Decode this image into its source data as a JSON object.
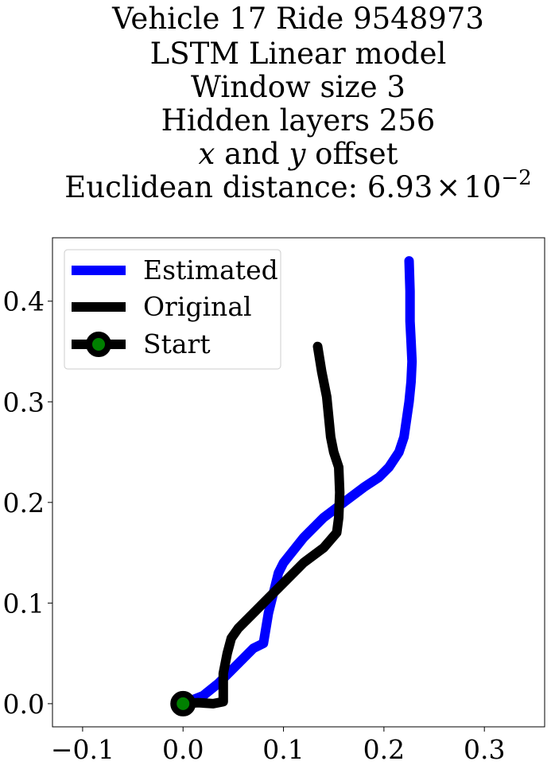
{
  "title_lines": [
    "Vehicle 17 Ride 9548973",
    "LSTM Linear model",
    "Window size 3",
    "Hidden layers 256"
  ],
  "title_offset_line": {
    "x": "x",
    "and": " and ",
    "y": "y",
    "rest": " offset"
  },
  "title_distance_line": {
    "prefix": "Euclidean distance: ",
    "mantissa": "6.93",
    "times": "×",
    "base": "10",
    "exponent": "−2"
  },
  "chart_data": {
    "type": "line",
    "xlim": [
      -0.13,
      0.36
    ],
    "ylim": [
      -0.023,
      0.463
    ],
    "x_ticks": [
      {
        "value": -0.1,
        "label": "−0.1"
      },
      {
        "value": 0.0,
        "label": "0.0"
      },
      {
        "value": 0.1,
        "label": "0.1"
      },
      {
        "value": 0.2,
        "label": "0.2"
      },
      {
        "value": 0.3,
        "label": "0.3"
      }
    ],
    "y_ticks": [
      {
        "value": 0.0,
        "label": "0.0"
      },
      {
        "value": 0.1,
        "label": "0.1"
      },
      {
        "value": 0.2,
        "label": "0.2"
      },
      {
        "value": 0.3,
        "label": "0.3"
      },
      {
        "value": 0.4,
        "label": "0.4"
      }
    ],
    "grid": false,
    "legend_position": "top-left",
    "series": [
      {
        "name": "Estimated",
        "color": "#0000ff",
        "x": [
          0.0,
          0.02,
          0.035,
          0.05,
          0.06,
          0.07,
          0.08,
          0.085,
          0.09,
          0.095,
          0.1,
          0.12,
          0.14,
          0.16,
          0.18,
          0.195,
          0.205,
          0.215,
          0.22,
          0.225,
          0.227,
          0.228,
          0.227,
          0.226,
          0.226,
          0.225
        ],
        "y": [
          0.0,
          0.008,
          0.02,
          0.035,
          0.045,
          0.055,
          0.06,
          0.09,
          0.11,
          0.13,
          0.14,
          0.165,
          0.185,
          0.2,
          0.215,
          0.225,
          0.235,
          0.25,
          0.265,
          0.3,
          0.32,
          0.34,
          0.36,
          0.38,
          0.41,
          0.44
        ]
      },
      {
        "name": "Original",
        "color": "#000000",
        "x": [
          0.0,
          0.015,
          0.03,
          0.04,
          0.04,
          0.044,
          0.048,
          0.055,
          0.07,
          0.085,
          0.1,
          0.12,
          0.14,
          0.153,
          0.155,
          0.156,
          0.155,
          0.15,
          0.147,
          0.145,
          0.143,
          0.138,
          0.134
        ],
        "y": [
          0.0,
          0.001,
          0.0,
          0.002,
          0.03,
          0.05,
          0.065,
          0.075,
          0.09,
          0.105,
          0.12,
          0.14,
          0.155,
          0.17,
          0.185,
          0.21,
          0.235,
          0.25,
          0.265,
          0.285,
          0.305,
          0.33,
          0.355
        ]
      }
    ],
    "start_marker": {
      "name": "Start",
      "x": 0.0,
      "y": 0.0,
      "edge_color": "#000000",
      "face_color": "#008000"
    }
  }
}
